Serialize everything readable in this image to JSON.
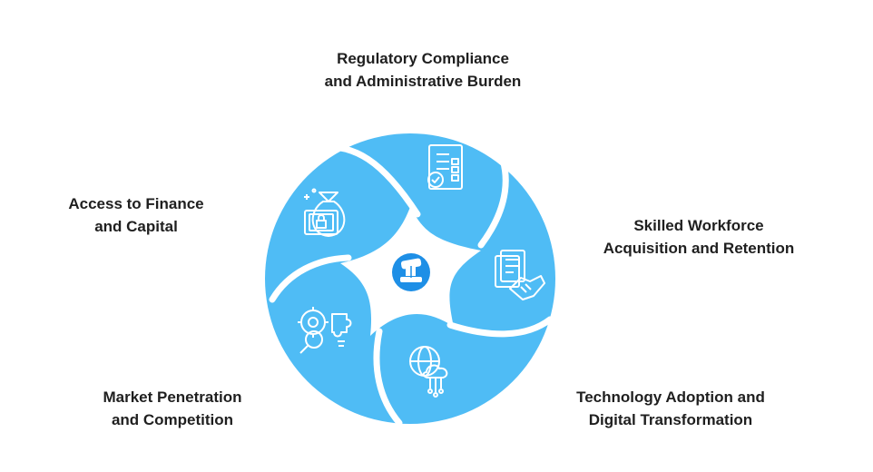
{
  "segments": [
    {
      "id": "regulatory",
      "line1": "Regulatory Compliance",
      "line2": "and Administrative Burden",
      "icon": "checklist-document-icon"
    },
    {
      "id": "workforce",
      "line1": "Skilled Workforce",
      "line2": "Acquisition and Retention",
      "icon": "handshake-contract-icon"
    },
    {
      "id": "technology",
      "line1": "Technology Adoption and",
      "line2": "Digital Transformation",
      "icon": "globe-cloud-circuit-icon"
    },
    {
      "id": "market",
      "line1": "Market Penetration",
      "line2": "and Competition",
      "icon": "gear-magnifier-puzzle-icon"
    },
    {
      "id": "finance",
      "line1": "Access to Finance",
      "line2": "and Capital",
      "icon": "money-bag-cash-icon"
    }
  ],
  "center": {
    "icon": "gavel-icon"
  },
  "colors": {
    "segment": "#4fbcf5",
    "divider": "#ffffff",
    "icon_stroke": "#ffffff",
    "center_badge": "#1e8fe6",
    "label_text": "#1f1f1f"
  }
}
